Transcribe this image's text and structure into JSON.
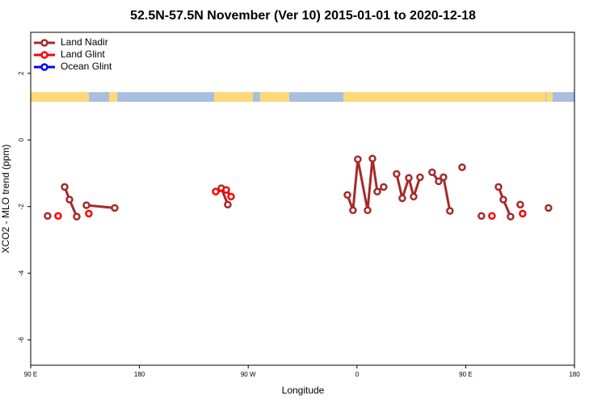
{
  "chart_data": {
    "type": "line",
    "title": "52.5N-57.5N November (Ver 10)   2015-01-01 to 2020-12-18",
    "xlabel": "Longitude",
    "ylabel": "XCO2 - MLO trend (ppm)",
    "xlim": [
      90,
      540
    ],
    "ylim": [
      -6.76,
      3.23
    ],
    "xticks": [
      {
        "value": 90,
        "label": "90 E"
      },
      180,
      {
        "value": 270,
        "label": "90 W"
      },
      {
        "value": 360,
        "label": "0"
      },
      {
        "value": 450,
        "label": "90 E"
      },
      {
        "value": 540,
        "label": "180"
      }
    ],
    "yticks": [
      -6,
      -4,
      -2,
      0,
      2
    ],
    "legend": "top-left",
    "series": [
      {
        "name": "Land Nadir",
        "color": "#a52a2a",
        "x": [
          104.0,
          null,
          118.1,
          122.1,
          128.1,
          null,
          136.1,
          159.5,
          null,
          247.8,
          253.1,
          null,
          352.1,
          356.7,
          360.7,
          368.8,
          372.8,
          376.8,
          382.1,
          null,
          392.8,
          397.5,
          402.9,
          406.9,
          412.2,
          null,
          422.2,
          427.6,
          431.6,
          436.9,
          null,
          447.0,
          null,
          463.0,
          null,
          477.1,
          481.1,
          487.1,
          null,
          495.1,
          null,
          518.5
        ],
        "values": [
          -2.28,
          null,
          -1.41,
          -1.79,
          -2.3,
          null,
          -1.96,
          -2.04,
          null,
          -1.45,
          -1.94,
          null,
          -1.65,
          -2.11,
          -0.58,
          -2.11,
          -0.56,
          -1.55,
          -1.41,
          null,
          -1.02,
          -1.75,
          -1.14,
          -1.7,
          -1.12,
          null,
          -0.97,
          -1.24,
          -1.12,
          -2.13,
          null,
          -0.82,
          null,
          -2.28,
          null,
          -1.41,
          -1.79,
          -2.3,
          null,
          -1.94,
          null,
          -2.04
        ]
      },
      {
        "name": "Land Glint",
        "color": "#ff0000",
        "x": [
          112.7,
          null,
          138.1,
          null,
          243.1,
          251.8,
          255.8,
          null,
          471.7,
          null,
          497.1
        ],
        "values": [
          -2.28,
          null,
          -2.21,
          null,
          -1.55,
          -1.5,
          -1.7,
          null,
          -2.28,
          null,
          -2.21
        ]
      },
      {
        "name": "Ocean Glint",
        "color": "#0000ff",
        "x": [],
        "values": []
      }
    ]
  }
}
